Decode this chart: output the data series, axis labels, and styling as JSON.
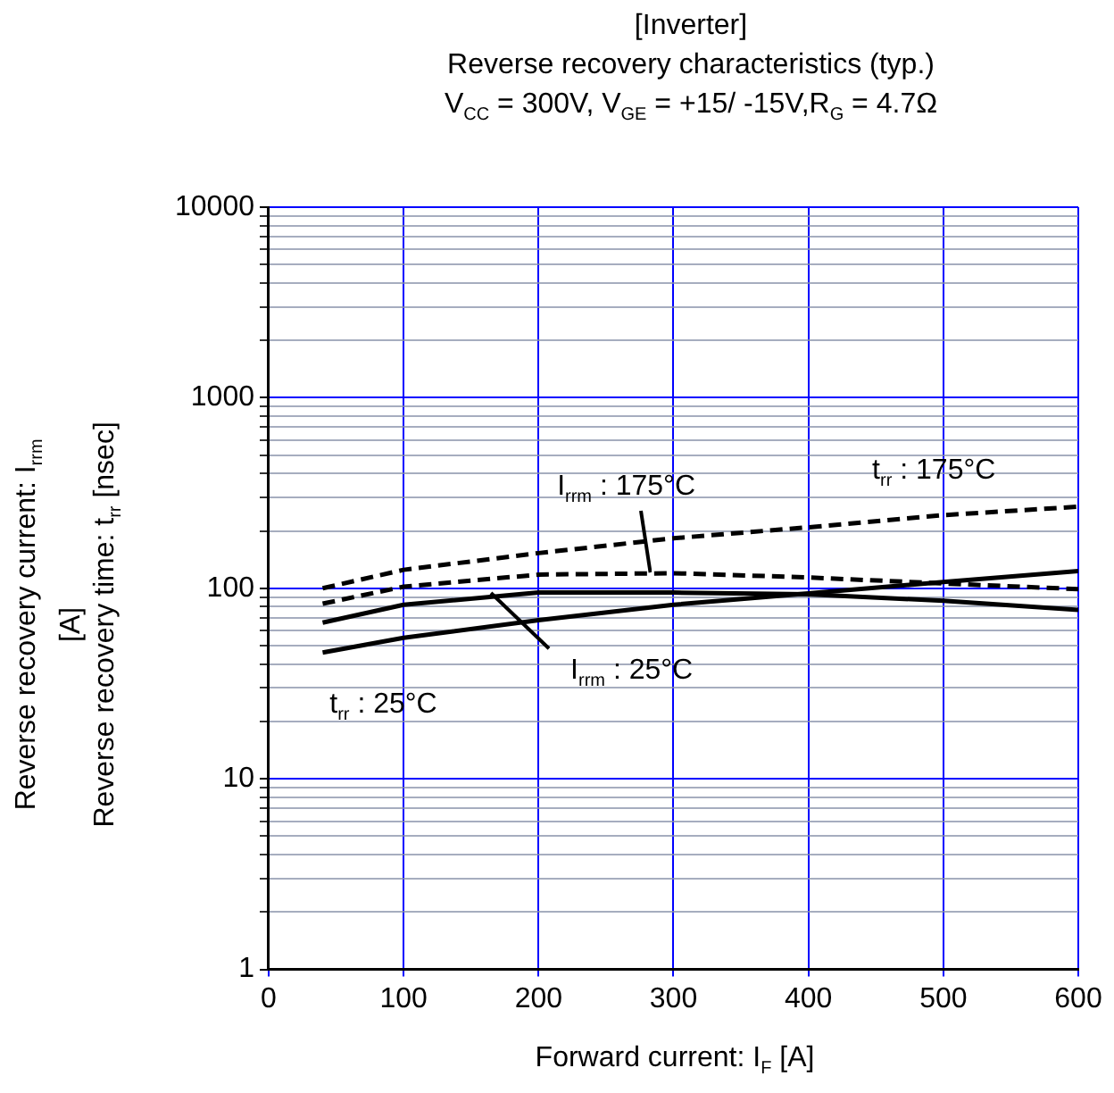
{
  "chart_data": {
    "type": "line",
    "title": "[Inverter]",
    "subtitle": "Reverse recovery characteristics  (typ.)\nV$_{CC}$ = 300V,      V$_{GE}$ = +15/ -15V,R$_{G}$ = 4.7Ω",
    "xlabel": "Forward current: I$_{F}$ [A]",
    "ylabel": "Reverse recovery current:  I$_{rrm}$\n[A]\nReverse recovery time:  t$_{rr}$  [nsec]",
    "x": [
      40,
      100,
      200,
      300,
      400,
      500,
      600
    ],
    "series": [
      {
        "name": "t$_{rr}$ : 175°C",
        "color": "#000000",
        "line_style": "dashed",
        "values": [
          100,
          125,
          153,
          183,
          209,
          242,
          268
        ]
      },
      {
        "name": "I$_{rrm}$ : 175°C",
        "color": "#000000",
        "line_style": "dashed",
        "values": [
          83,
          102,
          118,
          120,
          114,
          106,
          99
        ]
      },
      {
        "name": "I$_{rrm}$ : 25°C",
        "color": "#000000",
        "line_style": "solid",
        "values": [
          66,
          82,
          95,
          95,
          93,
          86,
          77
        ]
      },
      {
        "name": "t$_{rr}$ : 25°C",
        "color": "#000000",
        "line_style": "solid",
        "values": [
          46,
          55,
          68,
          82,
          94,
          108,
          123
        ]
      }
    ],
    "log": "y",
    "xlim": [
      0,
      600
    ],
    "xticks": [
      0,
      100,
      200,
      300,
      400,
      500,
      600
    ],
    "ylim": [
      1,
      10000
    ],
    "yticks": [
      1,
      {
        "value": 2,
        "label": null
      },
      {
        "value": 3,
        "label": null
      },
      {
        "value": 4,
        "label": null
      },
      {
        "value": 5,
        "label": null
      },
      {
        "value": 6,
        "label": null
      },
      {
        "value": 7,
        "label": null
      },
      {
        "value": 8,
        "label": null
      },
      {
        "value": 9,
        "label": null
      },
      10,
      {
        "value": 20,
        "label": null
      },
      {
        "value": 30,
        "label": null
      },
      {
        "value": 40,
        "label": null
      },
      {
        "value": 50,
        "label": null
      },
      {
        "value": 60,
        "label": null
      },
      {
        "value": 70,
        "label": null
      },
      {
        "value": 80,
        "label": null
      },
      {
        "value": 90,
        "label": null
      },
      100,
      {
        "value": 200,
        "label": null
      },
      {
        "value": 300,
        "label": null
      },
      {
        "value": 400,
        "label": null
      },
      {
        "value": 500,
        "label": null
      },
      {
        "value": 600,
        "label": null
      },
      {
        "value": 700,
        "label": null
      },
      {
        "value": 800,
        "label": null
      },
      {
        "value": 900,
        "label": null
      },
      1000,
      {
        "value": 2000,
        "label": null
      },
      {
        "value": 3000,
        "label": null
      },
      {
        "value": 4000,
        "label": null
      },
      {
        "value": 5000,
        "label": null
      },
      {
        "value": 6000,
        "label": null
      },
      {
        "value": 7000,
        "label": null
      },
      {
        "value": 8000,
        "label": null
      },
      {
        "value": 9000,
        "label": null
      },
      10000
    ],
    "grid": true,
    "legend": false,
    "marker": "none"
  }
}
